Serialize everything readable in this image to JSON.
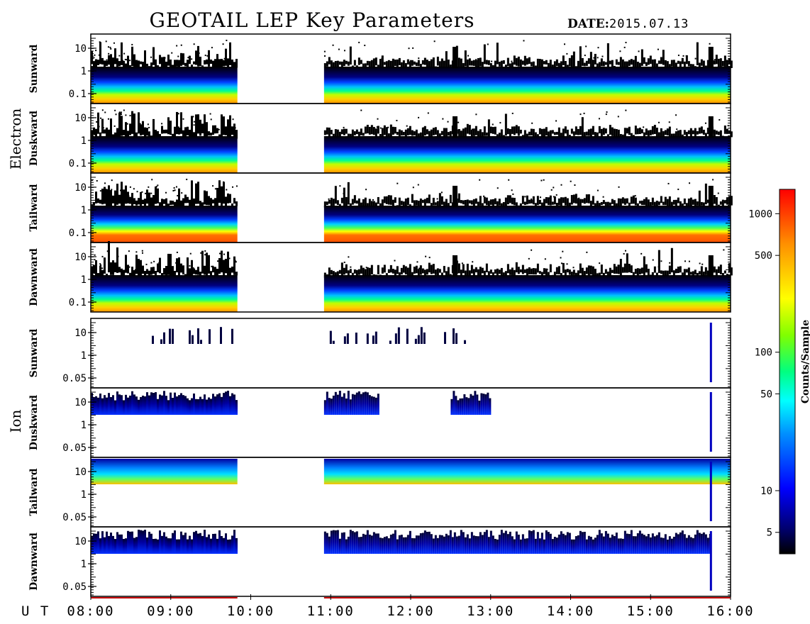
{
  "header": {
    "title": "GEOTAIL LEP Key Parameters",
    "date_label": "DATE:",
    "date_value": "2015.07.13"
  },
  "chart_data": {
    "type": "heatmap",
    "x_axis_label": "U T",
    "x_ticks": [
      "08:00",
      "09:00",
      "10:00",
      "11:00",
      "12:00",
      "13:00",
      "14:00",
      "15:00",
      "16:00"
    ],
    "xlim": [
      "08:00",
      "16:00"
    ],
    "data_gap": [
      "09:50",
      "10:55"
    ],
    "groups": [
      {
        "name": "Electron",
        "y_scale": "log",
        "y_ticks": [
          "10",
          "1",
          "0.1"
        ],
        "panels": [
          {
            "name": "Sunward"
          },
          {
            "name": "Duskward"
          },
          {
            "name": "Tailward"
          },
          {
            "name": "Dawnward"
          }
        ]
      },
      {
        "name": "Ion",
        "y_scale": "log",
        "y_ticks": [
          "10",
          "1",
          "0.05"
        ],
        "panels": [
          {
            "name": "Sunward"
          },
          {
            "name": "Duskward"
          },
          {
            "name": "Tailward"
          },
          {
            "name": "Dawnward"
          }
        ]
      }
    ],
    "colorbar": {
      "label": "Counts/Sample",
      "scale": "log",
      "range": [
        3.5,
        1500
      ],
      "ticks": [
        "1000",
        "500",
        "100",
        "50",
        "10",
        "5"
      ],
      "colors": [
        "#000000",
        "#000070",
        "#0000ff",
        "#0090ff",
        "#00ffff",
        "#00ff80",
        "#80ff00",
        "#ffff00",
        "#ff9000",
        "#ff0000"
      ]
    }
  }
}
